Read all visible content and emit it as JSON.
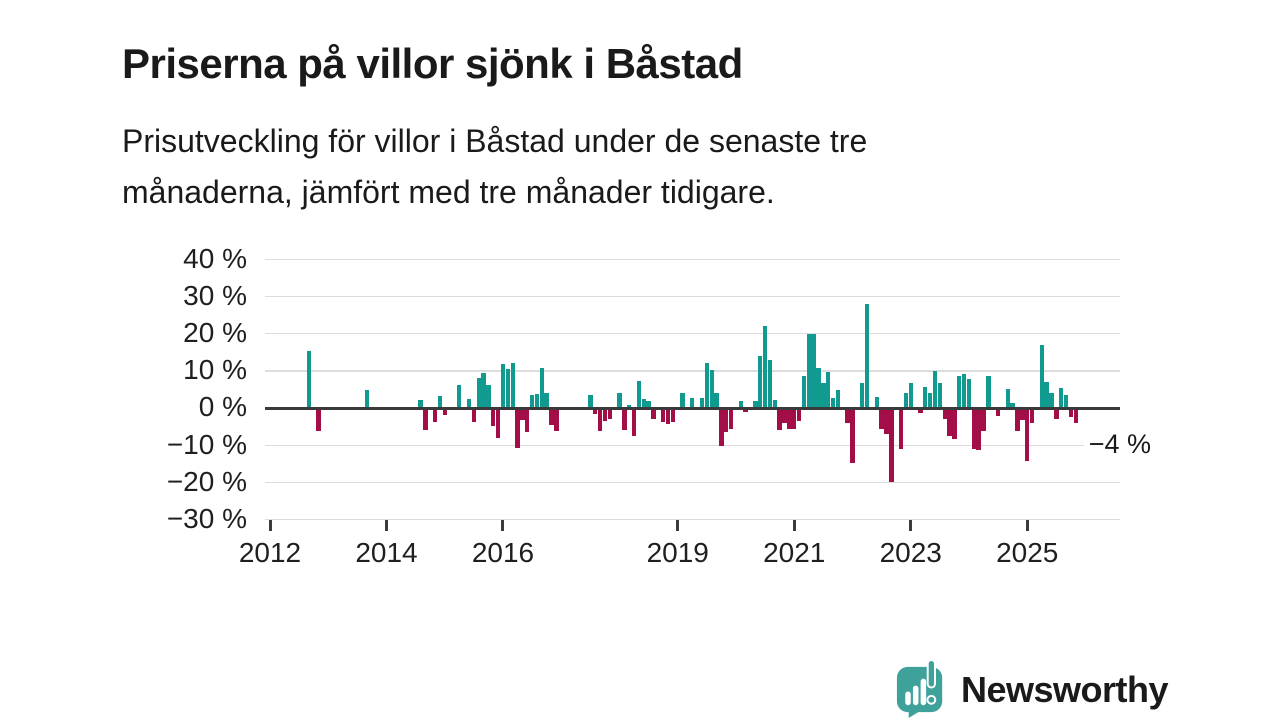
{
  "title": "Priserna på villor sjönk i Båstad",
  "subtitle_lines": [
    "Prisutveckling för villor i Båstad under de senaste tre",
    "månaderna, jämfört med tre månader tidigare."
  ],
  "footer": {
    "brand": "Newsworthy",
    "logo_icon": "newsworthy-speech-bubble-barchart-icon"
  },
  "chart_data": {
    "type": "bar",
    "unit": "%",
    "title": "",
    "xlabel": "",
    "ylabel": "",
    "ylim": [
      -30,
      40
    ],
    "grid": "horizontal",
    "legend": "none",
    "y_ticks": [
      {
        "value": 40,
        "label": "40 %"
      },
      {
        "value": 30,
        "label": "30 %"
      },
      {
        "value": 20,
        "label": "20 %"
      },
      {
        "value": 10,
        "label": "10 %"
      },
      {
        "value": 0,
        "label": "0 %"
      },
      {
        "value": -10,
        "label": "−10 %"
      },
      {
        "value": -20,
        "label": "−20 %"
      },
      {
        "value": -30,
        "label": "−30 %"
      }
    ],
    "x_ticks": [
      {
        "label": "2012",
        "month": "2012-01"
      },
      {
        "label": "2014",
        "month": "2014-01"
      },
      {
        "label": "2016",
        "month": "2016-01"
      },
      {
        "label": "2019",
        "month": "2019-01"
      },
      {
        "label": "2021",
        "month": "2021-01"
      },
      {
        "label": "2023",
        "month": "2023-01"
      },
      {
        "label": "2025",
        "month": "2025-01"
      }
    ],
    "annotation": {
      "text": "−4 %",
      "date": "2025-11",
      "value": -4
    },
    "colors": {
      "positive": "#109A90",
      "negative": "#A40E48",
      "axis": "#3a3a3a",
      "grid": "#dcdcdc",
      "brand": "#38A19B"
    },
    "series_format": [
      "month",
      "value_pct"
    ],
    "series": [
      [
        "2012-09",
        15.5
      ],
      [
        "2012-11",
        -6
      ],
      [
        "2013-09",
        4.8
      ],
      [
        "2014-08",
        2.2
      ],
      [
        "2014-09",
        -5.8
      ],
      [
        "2014-11",
        -3.6
      ],
      [
        "2014-12",
        3.3
      ],
      [
        "2015-01",
        -1.8
      ],
      [
        "2015-04",
        6.2
      ],
      [
        "2015-06",
        2.6
      ],
      [
        "2015-07",
        -3.6
      ],
      [
        "2015-08",
        8.2
      ],
      [
        "2015-09",
        9.6
      ],
      [
        "2015-10",
        6.3
      ],
      [
        "2015-11",
        -4.7
      ],
      [
        "2015-12",
        -8
      ],
      [
        "2016-01",
        12
      ],
      [
        "2016-02",
        10.5
      ],
      [
        "2016-03",
        12.3
      ],
      [
        "2016-04",
        -10.7
      ],
      [
        "2016-05",
        -3.1
      ],
      [
        "2016-06",
        -6.3
      ],
      [
        "2016-07",
        3.6
      ],
      [
        "2016-08",
        3.9
      ],
      [
        "2016-09",
        10.9
      ],
      [
        "2016-10",
        4.1
      ],
      [
        "2016-11",
        -4.5
      ],
      [
        "2016-12",
        -6.2
      ],
      [
        "2017-07",
        3.5
      ],
      [
        "2017-08",
        -1.5
      ],
      [
        "2017-09",
        -6
      ],
      [
        "2017-10",
        -3.5
      ],
      [
        "2017-11",
        -3
      ],
      [
        "2018-01",
        4
      ],
      [
        "2018-02",
        -5.8
      ],
      [
        "2018-03",
        0.8
      ],
      [
        "2018-04",
        -7.5
      ],
      [
        "2018-05",
        7.4
      ],
      [
        "2018-06",
        2.4
      ],
      [
        "2018-07",
        2
      ],
      [
        "2018-08",
        -2.9
      ],
      [
        "2018-10",
        -3.8
      ],
      [
        "2018-11",
        -4.2
      ],
      [
        "2018-12",
        -3.8
      ],
      [
        "2019-02",
        4.2
      ],
      [
        "2019-04",
        2.9
      ],
      [
        "2019-06",
        2.9
      ],
      [
        "2019-07",
        12.3
      ],
      [
        "2019-08",
        10.2
      ],
      [
        "2019-09",
        4
      ],
      [
        "2019-10",
        -10.2
      ],
      [
        "2019-11",
        -6.5
      ],
      [
        "2019-12",
        -5.6
      ],
      [
        "2020-02",
        2
      ],
      [
        "2020-03",
        -0.9
      ],
      [
        "2020-05",
        2
      ],
      [
        "2020-06",
        14
      ],
      [
        "2020-07",
        22.2
      ],
      [
        "2020-08",
        13.1
      ],
      [
        "2020-09",
        2.3
      ],
      [
        "2020-10",
        -5.8
      ],
      [
        "2020-11",
        -4
      ],
      [
        "2020-12",
        -5.5
      ],
      [
        "2021-01",
        -5.5
      ],
      [
        "2021-02",
        -3.3
      ],
      [
        "2021-03",
        8.8
      ],
      [
        "2021-04",
        20
      ],
      [
        "2021-05",
        20
      ],
      [
        "2021-06",
        10.9
      ],
      [
        "2021-07",
        6.9
      ],
      [
        "2021-08",
        9.7
      ],
      [
        "2021-09",
        2.8
      ],
      [
        "2021-10",
        4.9
      ],
      [
        "2021-12",
        -4
      ],
      [
        "2022-01",
        -14.7
      ],
      [
        "2022-03",
        6.9
      ],
      [
        "2022-04",
        28
      ],
      [
        "2022-06",
        3.1
      ],
      [
        "2022-07",
        -5.6
      ],
      [
        "2022-08",
        -6.9
      ],
      [
        "2022-09",
        -19.8
      ],
      [
        "2022-11",
        -10.9
      ],
      [
        "2022-12",
        4
      ],
      [
        "2023-01",
        6.7
      ],
      [
        "2023-03",
        -1.2
      ],
      [
        "2023-04",
        5.8
      ],
      [
        "2023-05",
        4
      ],
      [
        "2023-06",
        10
      ],
      [
        "2023-07",
        6.9
      ],
      [
        "2023-08",
        -2.9
      ],
      [
        "2023-09",
        -7.5
      ],
      [
        "2023-10",
        -8.2
      ],
      [
        "2023-11",
        8.6
      ],
      [
        "2023-12",
        9.1
      ],
      [
        "2024-01",
        8
      ],
      [
        "2024-02",
        -10.9
      ],
      [
        "2024-03",
        -11.2
      ],
      [
        "2024-04",
        -6.2
      ],
      [
        "2024-05",
        8.6
      ],
      [
        "2024-07",
        -2
      ],
      [
        "2024-09",
        5.1
      ],
      [
        "2024-10",
        1.4
      ],
      [
        "2024-11",
        -6
      ],
      [
        "2024-12",
        -3.1
      ],
      [
        "2025-01",
        -14.2
      ],
      [
        "2025-02",
        -4
      ],
      [
        "2025-04",
        17
      ],
      [
        "2025-05",
        7
      ],
      [
        "2025-06",
        4
      ],
      [
        "2025-07",
        -3
      ],
      [
        "2025-08",
        5.4
      ],
      [
        "2025-09",
        3.6
      ],
      [
        "2025-10",
        -2.4
      ],
      [
        "2025-11",
        -4
      ]
    ]
  }
}
